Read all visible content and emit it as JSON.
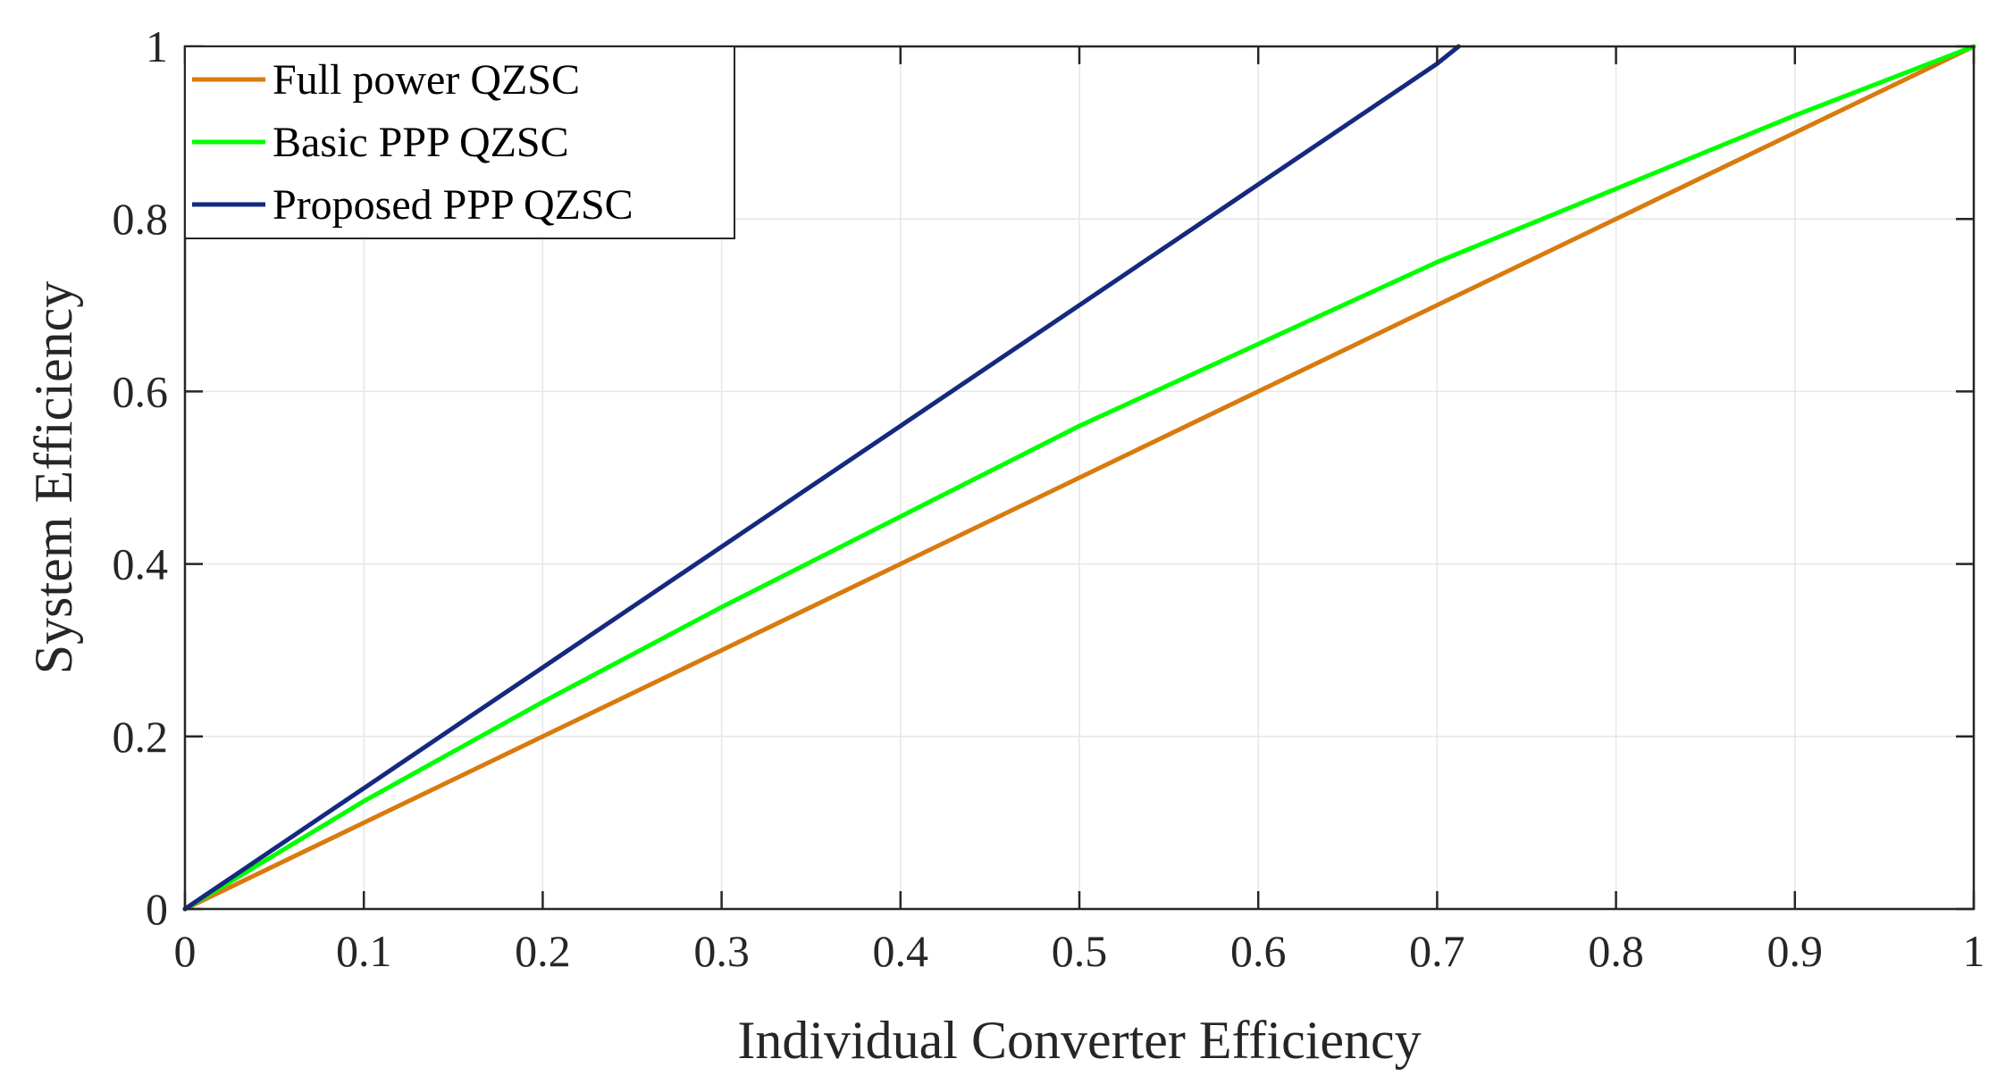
{
  "chart_data": {
    "type": "line",
    "title": "",
    "xlabel": "Individual Converter Efficiency",
    "ylabel": "System Efficiency",
    "xlim": [
      0,
      1
    ],
    "ylim": [
      0,
      1
    ],
    "grid": true,
    "legend_position": "top-left",
    "x_ticks": [
      0,
      0.1,
      0.2,
      0.3,
      0.4,
      0.5,
      0.6,
      0.7,
      0.8,
      0.9,
      1
    ],
    "x_tick_labels": [
      "0",
      "0.1",
      "0.2",
      "0.3",
      "0.4",
      "0.5",
      "0.6",
      "0.7",
      "0.8",
      "0.9",
      "1"
    ],
    "y_ticks": [
      0,
      0.2,
      0.4,
      0.6,
      0.8,
      1
    ],
    "y_tick_labels": [
      "0",
      "0.2",
      "0.4",
      "0.6",
      "0.8",
      "1"
    ],
    "series": [
      {
        "name": "Full power QZSC",
        "color": "#D97A0F",
        "x": [
          0,
          0.1,
          0.2,
          0.3,
          0.4,
          0.5,
          0.6,
          0.7,
          0.8,
          0.9,
          1.0
        ],
        "y": [
          0,
          0.1,
          0.2,
          0.3,
          0.4,
          0.5,
          0.6,
          0.7,
          0.8,
          0.9,
          1.0
        ]
      },
      {
        "name": "Basic PPP QZSC",
        "color": "#00FF00",
        "x": [
          0,
          0.1,
          0.2,
          0.3,
          0.4,
          0.5,
          0.6,
          0.7,
          0.8,
          0.9,
          1.0
        ],
        "y": [
          0,
          0.125,
          0.24,
          0.35,
          0.455,
          0.56,
          0.655,
          0.75,
          0.835,
          0.92,
          1.0
        ]
      },
      {
        "name": "Proposed PPP QZSC",
        "color": "#15297F",
        "x": [
          0,
          0.1,
          0.2,
          0.3,
          0.4,
          0.5,
          0.6,
          0.7,
          0.712
        ],
        "y": [
          0,
          0.14,
          0.28,
          0.42,
          0.56,
          0.7,
          0.84,
          0.98,
          1.0
        ]
      }
    ]
  }
}
